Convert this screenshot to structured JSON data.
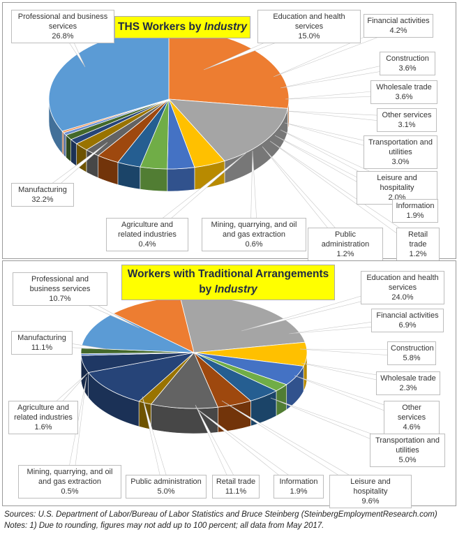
{
  "chart_data": [
    {
      "type": "pie",
      "title": "THS Workers by Industry",
      "title_plain": "THS Workers by ",
      "title_italic": "Industry",
      "categories": [
        "Professional and business services",
        "Education and health services",
        "Financial activities",
        "Construction",
        "Wholesale trade",
        "Other services",
        "Transportation and utilities",
        "Leisure and hospitality",
        "Information",
        "Retail trade",
        "Public administration",
        "Mining, quarrying, and oil and gas extraction",
        "Agriculture and related industries",
        "Manufacturing"
      ],
      "values": [
        26.8,
        15.0,
        4.2,
        3.6,
        3.6,
        3.1,
        3.0,
        2.0,
        1.9,
        1.2,
        1.2,
        0.6,
        0.4,
        32.2
      ],
      "value_labels": [
        "26.8%",
        "15.0%",
        "4.2%",
        "3.6%",
        "3.6%",
        "3.1%",
        "3.0%",
        "2.0%",
        "1.9%",
        "1.2%",
        "1.2%",
        "0.6%",
        "0.4%",
        "32.2%"
      ],
      "colors": [
        "#ed7d31",
        "#a5a5a5",
        "#ffc000",
        "#4472c4",
        "#70ad47",
        "#255e91",
        "#9e480e",
        "#636363",
        "#997300",
        "#264478",
        "#43682b",
        "#698ed0",
        "#f1975a",
        "#5b9bd5"
      ]
    },
    {
      "type": "pie",
      "title": "Workers with Traditional Arrangements by Industry",
      "title_line1": "Workers with Traditional Arrangements",
      "title_line2_plain": "by ",
      "title_line2_italic": "Industry",
      "categories": [
        "Education and health services",
        "Financial activities",
        "Construction",
        "Wholesale trade",
        "Other services",
        "Transportation and utilities",
        "Leisure and hospitality",
        "Information",
        "Retail trade",
        "Public administration",
        "Mining, quarrying, and oil and gas extraction",
        "Agriculture and related industries",
        "Manufacturing",
        "Professional and business services"
      ],
      "values": [
        24.0,
        6.9,
        5.8,
        2.3,
        4.6,
        5.0,
        9.6,
        1.9,
        11.1,
        5.0,
        0.5,
        1.6,
        11.1,
        10.7
      ],
      "value_labels": [
        "24.0%",
        "6.9%",
        "5.8%",
        "2.3%",
        "4.6%",
        "5.0%",
        "9.6%",
        "1.9%",
        "11.1%",
        "5.0%",
        "0.5%",
        "1.6%",
        "11.1%",
        "10.7%"
      ],
      "colors": [
        "#a5a5a5",
        "#ffc000",
        "#4472c4",
        "#70ad47",
        "#255e91",
        "#9e480e",
        "#636363",
        "#997300",
        "#264478",
        "#1f3864",
        "#698ed0",
        "#43682b",
        "#5b9bd5",
        "#ed7d31"
      ]
    }
  ],
  "footer": {
    "sources": "Sources: U.S. Department of Labor/Bureau of Labor Statistics and Bruce Steinberg (SteinbergEmploymentResearch.com)",
    "notes": "Notes: 1) Due to rounding, figures may not add up to 100 percent; all data from May 2017."
  }
}
